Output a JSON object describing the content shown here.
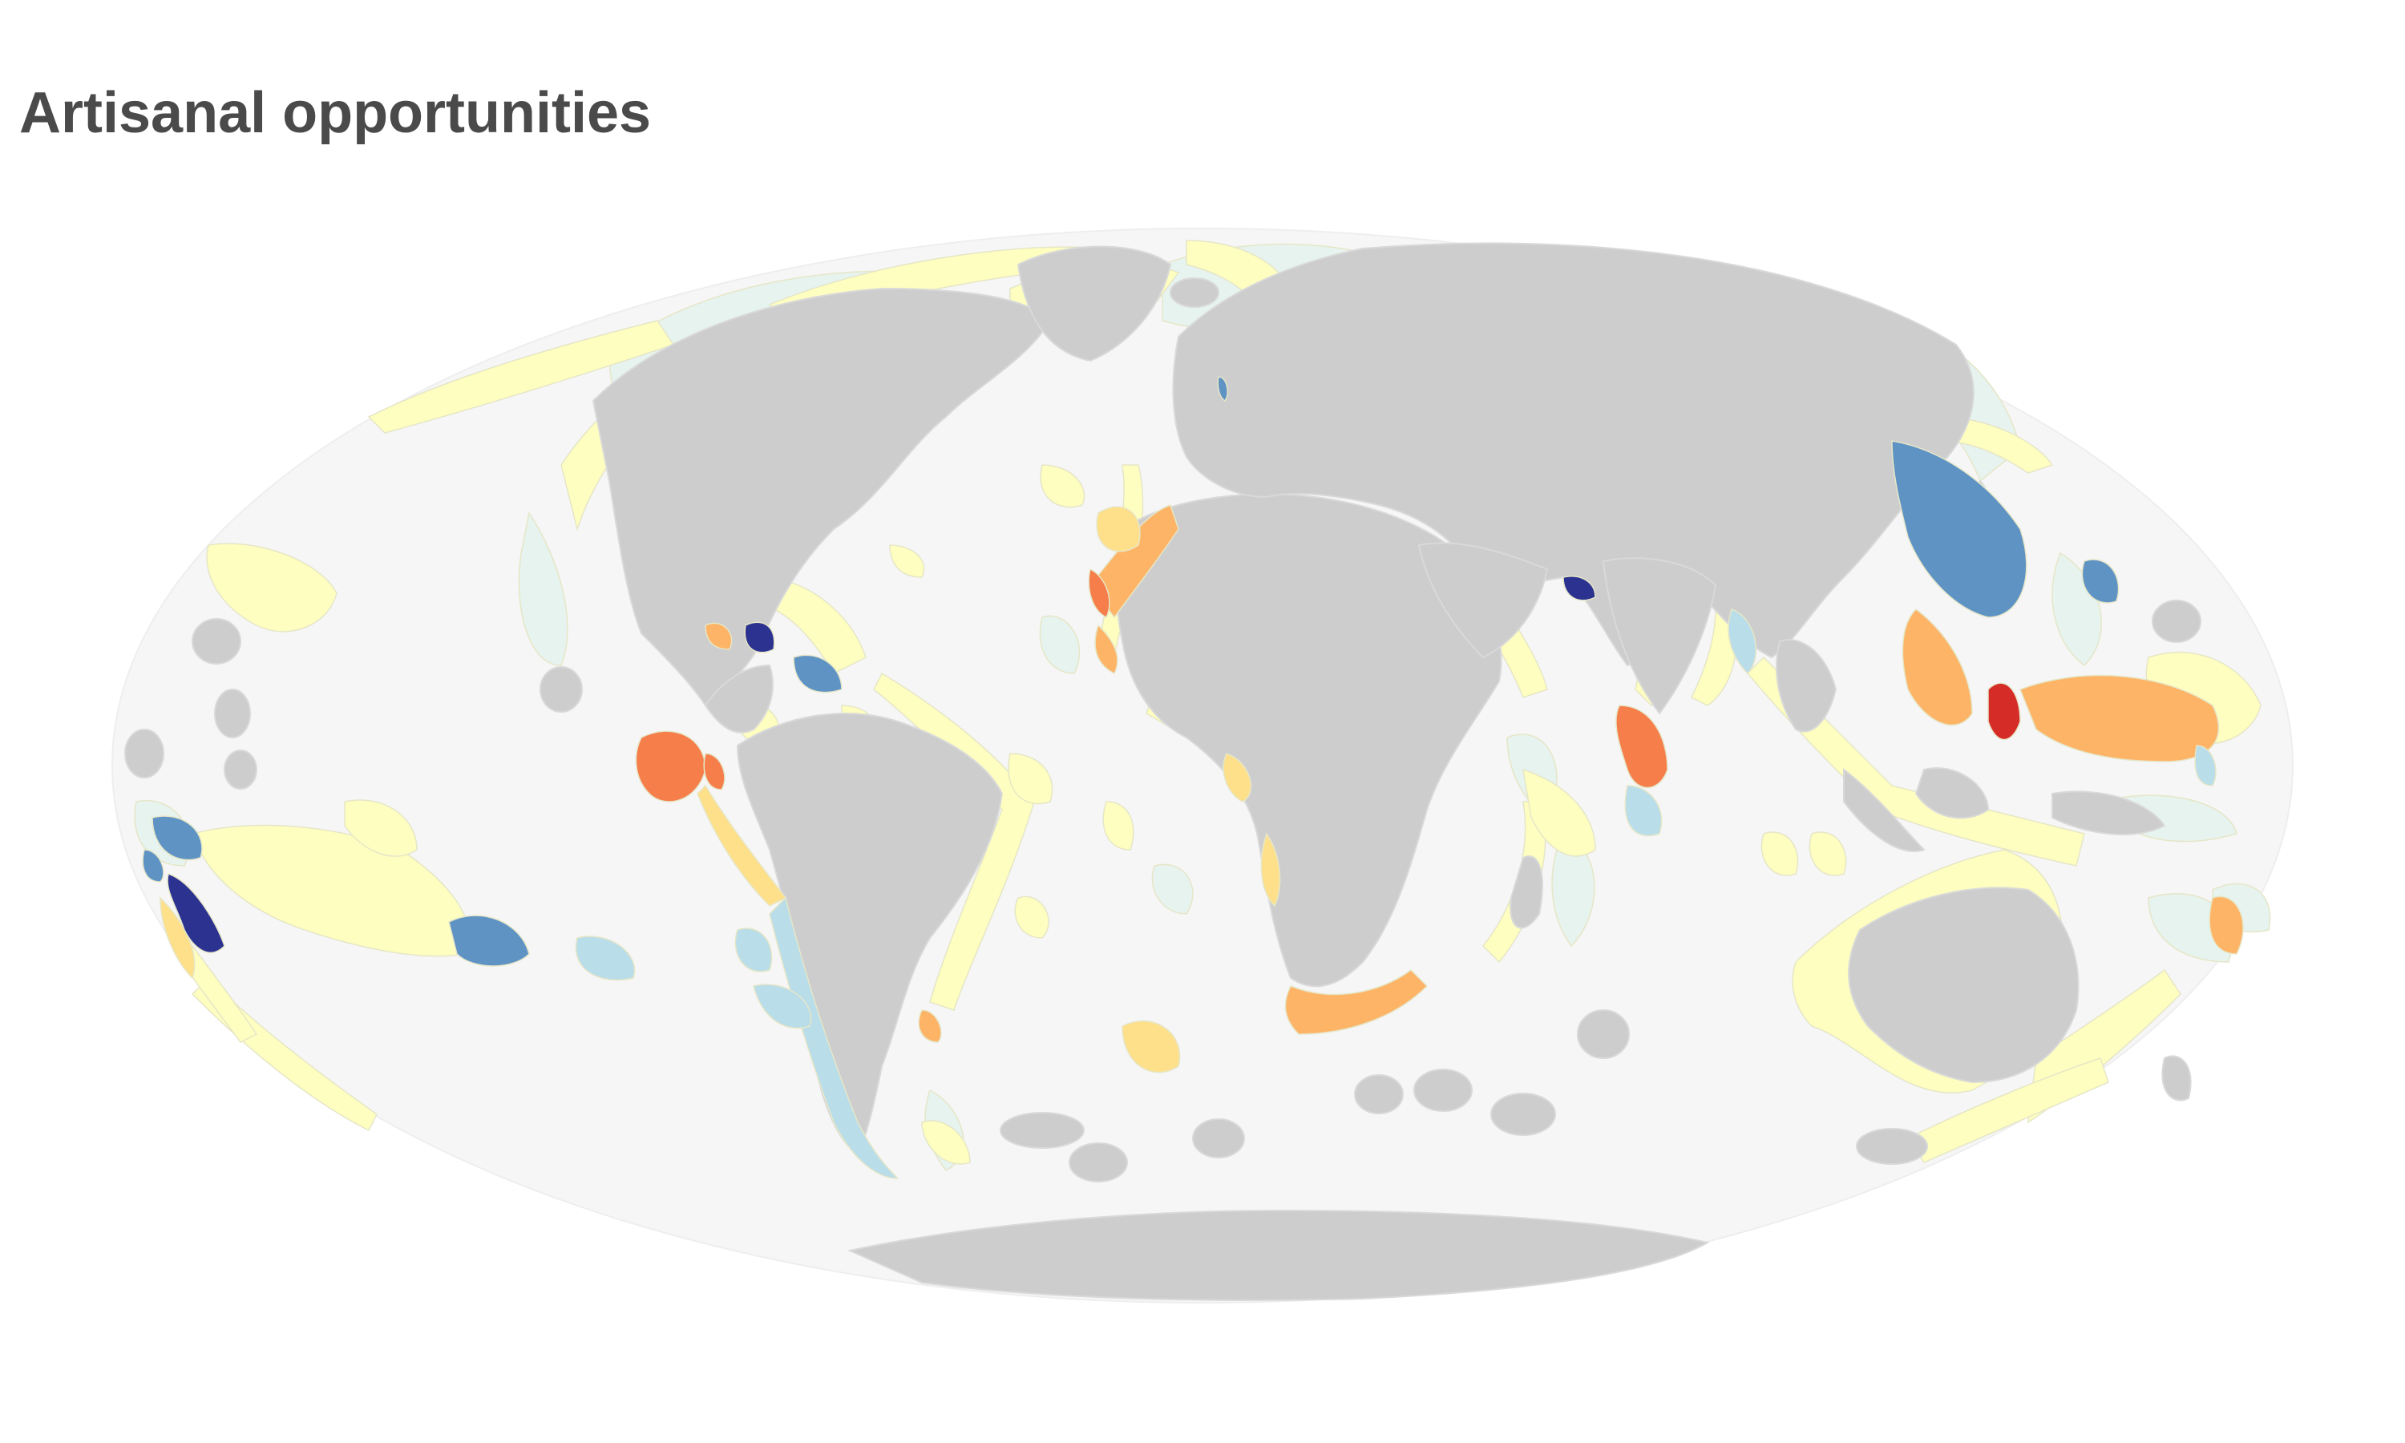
{
  "title": "Artisanal opportunities",
  "map": {
    "projection": "mollweide",
    "colors": {
      "ocean": "#f6f6f6",
      "land": "#cdcdcd",
      "neutral_eez": "#e6f3ee",
      "scale": [
        "#2b3290",
        "#5e93c4",
        "#b9dde9",
        "#fefec0",
        "#fee08b",
        "#fdb466",
        "#f57e4a",
        "#d52c27"
      ]
    }
  }
}
